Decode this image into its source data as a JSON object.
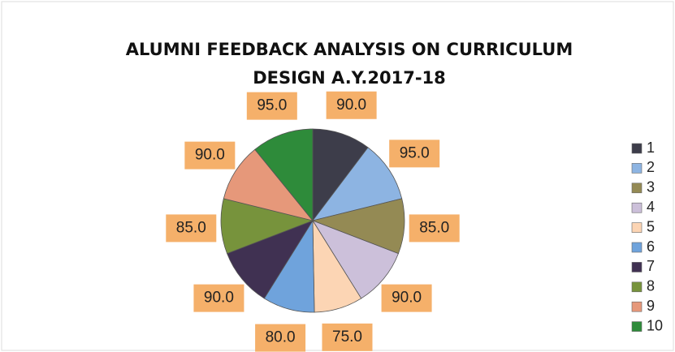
{
  "chart_data": {
    "type": "pie",
    "title": [
      "ALUMNI FEEDBACK ANALYSIS ON CURRICULUM",
      "DESIGN A.Y.2017-18"
    ],
    "categories": [
      "1",
      "2",
      "3",
      "4",
      "5",
      "6",
      "7",
      "8",
      "9",
      "10"
    ],
    "values": [
      90,
      95,
      85,
      90,
      75,
      80,
      90,
      85,
      90,
      95
    ],
    "value_labels": [
      "90.0",
      "95.0",
      "85.0",
      "90.0",
      "75.0",
      "80.0",
      "90.0",
      "85.0",
      "90.0",
      "95.0"
    ],
    "colors": [
      "#3d3d4a",
      "#8db4e2",
      "#948a54",
      "#ccc0da",
      "#fcd5b4",
      "#6fa3dc",
      "#403152",
      "#77933c",
      "#e6987a",
      "#2e8b3a"
    ],
    "legend": "right"
  }
}
